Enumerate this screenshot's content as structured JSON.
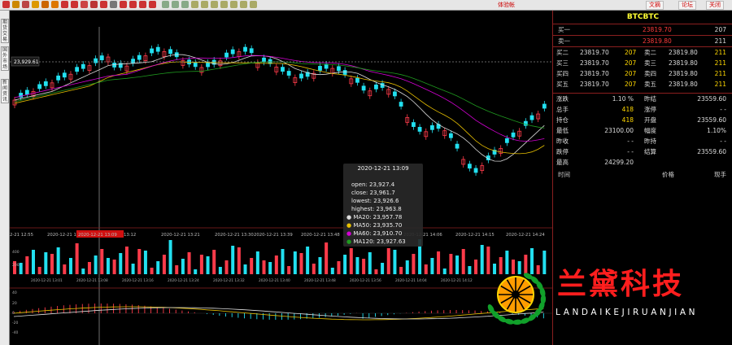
{
  "toolbar": {
    "title": "体验帐",
    "btn_text": "文摘",
    "btn_forum": "论坛",
    "btn_close": "关闭"
  },
  "left_tabs": [
    "期货交易",
    "国外市场",
    "新闻资讯"
  ],
  "price_marker": "23,929.61",
  "time_axis": [
    "2-21 12:55",
    "2020-12-21 13:00",
    "2020-12-21 13:09",
    "13:12",
    "2020-12-21 13:21",
    "2020-12-21 13:30",
    "2020-12-21 13:39",
    "2020-12-21 13:48",
    "2020-12-21 13:57",
    "2020-12-21 14:06",
    "2020-12-21 14:15",
    "2020-12-21 14:24"
  ],
  "time_axis_small": [
    "2020-12-21 13:01",
    "2020-12-21 13:08",
    "2020-12-21 13:16",
    "2020-12-21 13:24",
    "2020-12-21 13:32",
    "2020-12-21 13:40",
    "2020-12-21 13:48",
    "2020-12-21 13:56",
    "2020-12-21 14:04",
    "2020-12-21 14:12"
  ],
  "tooltip": {
    "time": "2020-12-21 13:09",
    "open": "open: 23,927.4",
    "close": "close: 23,961.7",
    "lowest": "lowest: 23,926.6",
    "highest": "highest: 23,963.8",
    "ma20": "MA20: 23,957.78",
    "ma50": "MA50: 23,935.70",
    "ma60": "MA60: 23,910.70",
    "ma120": "MA120: 23,927.63",
    "colors": {
      "ma20": "#dddddd",
      "ma50": "#e8c000",
      "ma60": "#d400d4",
      "ma120": "#1f9a1f"
    }
  },
  "volume_axis": [
    "400",
    "200"
  ],
  "macd_axis": [
    "40",
    "20",
    "0",
    "-20",
    "-40"
  ],
  "quote": {
    "symbol": "BTCBTC",
    "buy1": {
      "label": "买一",
      "price": "23819.70",
      "qty": "207"
    },
    "sell1": {
      "label": "卖一",
      "price": "23819.80",
      "qty": "211"
    },
    "depth": [
      {
        "bl": "买二",
        "bp": "23819.70",
        "bq": "207",
        "sl": "卖二",
        "sp": "23819.80",
        "sq": "211"
      },
      {
        "bl": "买三",
        "bp": "23819.70",
        "bq": "207",
        "sl": "卖三",
        "sp": "23819.80",
        "sq": "211"
      },
      {
        "bl": "买四",
        "bp": "23819.70",
        "bq": "207",
        "sl": "卖四",
        "sp": "23819.80",
        "sq": "211"
      },
      {
        "bl": "买五",
        "bp": "23819.70",
        "bq": "207",
        "sl": "卖五",
        "sp": "23819.80",
        "sq": "211"
      }
    ],
    "stats": [
      {
        "l1": "涨跌",
        "v1": "1.10 %",
        "c1": "w",
        "l2": "昨结",
        "v2": "23559.60",
        "c2": "w"
      },
      {
        "l1": "总手",
        "v1": "418",
        "c1": "y",
        "l2": "涨停",
        "v2": "- -",
        "c2": "w"
      },
      {
        "l1": "持仓",
        "v1": "418",
        "c1": "y",
        "l2": "开盘",
        "v2": "23559.60",
        "c2": "w"
      },
      {
        "l1": "最低",
        "v1": "23100.00",
        "c1": "w",
        "l2": "幅度",
        "v2": "1.10%",
        "c2": "w"
      },
      {
        "l1": "昨收",
        "v1": "- -",
        "c1": "w",
        "l2": "昨持",
        "v2": "- -",
        "c2": "w"
      },
      {
        "l1": "跌停",
        "v1": "- -",
        "c1": "w",
        "l2": "结算",
        "v2": "23559.60",
        "c2": "w"
      },
      {
        "l1": "最高",
        "v1": "24299.20",
        "c1": "w",
        "l2": "",
        "v2": "",
        "c2": "w"
      }
    ],
    "trades_header": {
      "time": "时间",
      "price": "价格",
      "volume": "现手"
    }
  },
  "brand": {
    "name": "兰黛科技",
    "sub": "LANDAIKEJIRUANJIAN"
  },
  "colors": {
    "up": "#ff3b4a",
    "down": "#22e0f0",
    "border": "#8a1f1f",
    "crosshair": "#bbbbbb"
  }
}
